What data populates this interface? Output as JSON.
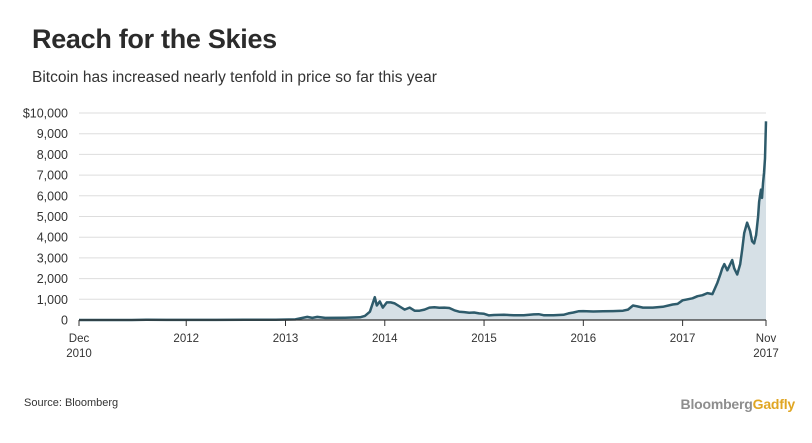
{
  "title": "Reach for the Skies",
  "subtitle": "Bitcoin has increased nearly tenfold in price so far this year",
  "source": "Source: Bloomberg",
  "brand": {
    "part1": "Bloomberg",
    "part2": "Gadfly",
    "color1": "#8e8e8e",
    "color2": "#e0a623"
  },
  "colors": {
    "line": "#2e5b6b",
    "area": "#d6e0e6",
    "grid": "#dddddd",
    "axis": "#333333"
  },
  "chart_data": {
    "type": "area",
    "title": "Reach for the Skies",
    "xlabel": "",
    "ylabel": "",
    "ylim": [
      0,
      10000
    ],
    "xlim": [
      2010.92,
      2017.84
    ],
    "grid": true,
    "y_ticks": [
      0,
      1000,
      2000,
      3000,
      4000,
      5000,
      6000,
      7000,
      8000,
      9000,
      10000
    ],
    "y_tick_labels": [
      "0",
      "1,000",
      "2,000",
      "3,000",
      "4,000",
      "5,000",
      "6,000",
      "7,000",
      "8,000",
      "9,000",
      "$10,000"
    ],
    "x_ticks": [
      {
        "x": 2010.92,
        "label1": "Dec",
        "label2": "2010"
      },
      {
        "x": 2012.0,
        "label1": "2012",
        "label2": ""
      },
      {
        "x": 2013.0,
        "label1": "2013",
        "label2": ""
      },
      {
        "x": 2014.0,
        "label1": "2014",
        "label2": ""
      },
      {
        "x": 2015.0,
        "label1": "2015",
        "label2": ""
      },
      {
        "x": 2016.0,
        "label1": "2016",
        "label2": ""
      },
      {
        "x": 2017.0,
        "label1": "2017",
        "label2": ""
      },
      {
        "x": 2017.84,
        "label1": "Nov",
        "label2": "2017"
      }
    ],
    "series": [
      {
        "name": "",
        "x": [
          2010.92,
          2011.2,
          2011.45,
          2011.6,
          2011.8,
          2012.0,
          2012.3,
          2012.6,
          2012.9,
          2013.1,
          2013.22,
          2013.27,
          2013.32,
          2013.4,
          2013.6,
          2013.75,
          2013.8,
          2013.85,
          2013.9,
          2013.92,
          2013.95,
          2013.98,
          2014.02,
          2014.06,
          2014.1,
          2014.15,
          2014.2,
          2014.25,
          2014.3,
          2014.35,
          2014.4,
          2014.45,
          2014.5,
          2014.55,
          2014.6,
          2014.65,
          2014.7,
          2014.75,
          2014.8,
          2014.85,
          2014.9,
          2014.95,
          2015.0,
          2015.05,
          2015.1,
          2015.2,
          2015.3,
          2015.4,
          2015.5,
          2015.55,
          2015.6,
          2015.7,
          2015.8,
          2015.85,
          2015.9,
          2015.95,
          2016.0,
          2016.1,
          2016.2,
          2016.3,
          2016.4,
          2016.45,
          2016.5,
          2016.55,
          2016.6,
          2016.7,
          2016.8,
          2016.9,
          2016.95,
          2017.0,
          2017.05,
          2017.1,
          2017.15,
          2017.2,
          2017.25,
          2017.3,
          2017.35,
          2017.38,
          2017.4,
          2017.42,
          2017.45,
          2017.48,
          2017.5,
          2017.52,
          2017.55,
          2017.58,
          2017.6,
          2017.62,
          2017.65,
          2017.68,
          2017.7,
          2017.72,
          2017.74,
          2017.76,
          2017.77,
          2017.78,
          2017.79,
          2017.8,
          2017.81,
          2017.82,
          2017.83,
          2017.84
        ],
        "values": [
          0,
          0,
          0,
          10,
          5,
          5,
          6,
          10,
          13,
          30,
          150,
          100,
          150,
          100,
          110,
          130,
          200,
          400,
          1100,
          700,
          900,
          600,
          850,
          850,
          800,
          650,
          500,
          600,
          450,
          450,
          500,
          600,
          620,
          590,
          600,
          580,
          470,
          400,
          380,
          350,
          360,
          320,
          300,
          220,
          240,
          250,
          230,
          230,
          270,
          280,
          230,
          230,
          250,
          320,
          360,
          420,
          430,
          410,
          420,
          430,
          450,
          500,
          700,
          650,
          600,
          600,
          640,
          750,
          780,
          950,
          1000,
          1050,
          1150,
          1200,
          1300,
          1250,
          1800,
          2200,
          2500,
          2700,
          2400,
          2700,
          2900,
          2500,
          2200,
          2700,
          3400,
          4200,
          4700,
          4300,
          3800,
          3700,
          4100,
          5000,
          5700,
          6000,
          6300,
          5900,
          6600,
          7100,
          7800,
          9600
        ]
      }
    ]
  }
}
